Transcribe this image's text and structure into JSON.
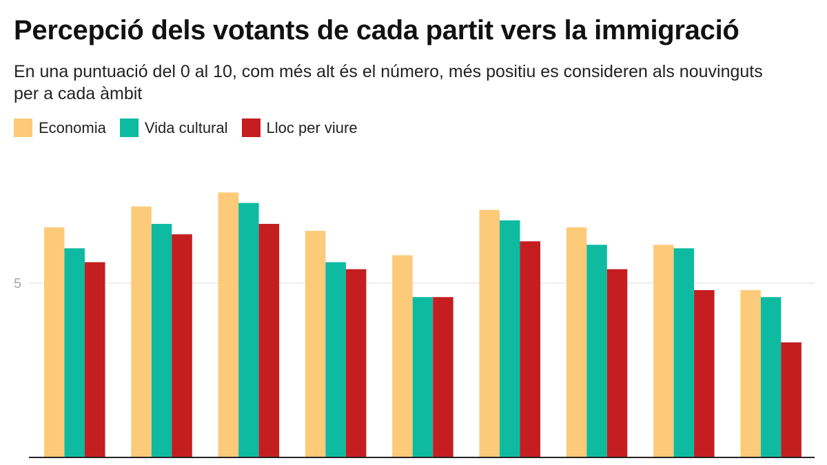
{
  "chart_data": {
    "type": "bar",
    "title": "Percepció dels votants de cada partit vers la immigració",
    "subtitle": "En una puntuació del 0 al 10, com més alt és el número, més positiu es consideren als nouvinguts per a cada àmbit",
    "categories": [
      "",
      "",
      "",
      "",
      "",
      "",
      "",
      "",
      ""
    ],
    "series": [
      {
        "name": "Economia",
        "color": "#FDCA7A",
        "values": [
          6.6,
          7.2,
          7.6,
          6.5,
          5.8,
          7.1,
          6.6,
          6.1,
          4.8
        ]
      },
      {
        "name": "Vida cultural",
        "color": "#0EBBA1",
        "values": [
          6.0,
          6.7,
          7.3,
          5.6,
          4.6,
          6.8,
          6.1,
          6.0,
          4.6
        ]
      },
      {
        "name": "Lloc per viure",
        "color": "#C41E20",
        "values": [
          5.6,
          6.4,
          6.7,
          5.4,
          4.6,
          6.2,
          5.4,
          4.8,
          3.3
        ]
      }
    ],
    "ylim": [
      0,
      10
    ],
    "yticks": [
      {
        "value": 5,
        "label": "5"
      }
    ],
    "grid": true,
    "legend": "top-left",
    "xlabel": "",
    "ylabel": ""
  }
}
